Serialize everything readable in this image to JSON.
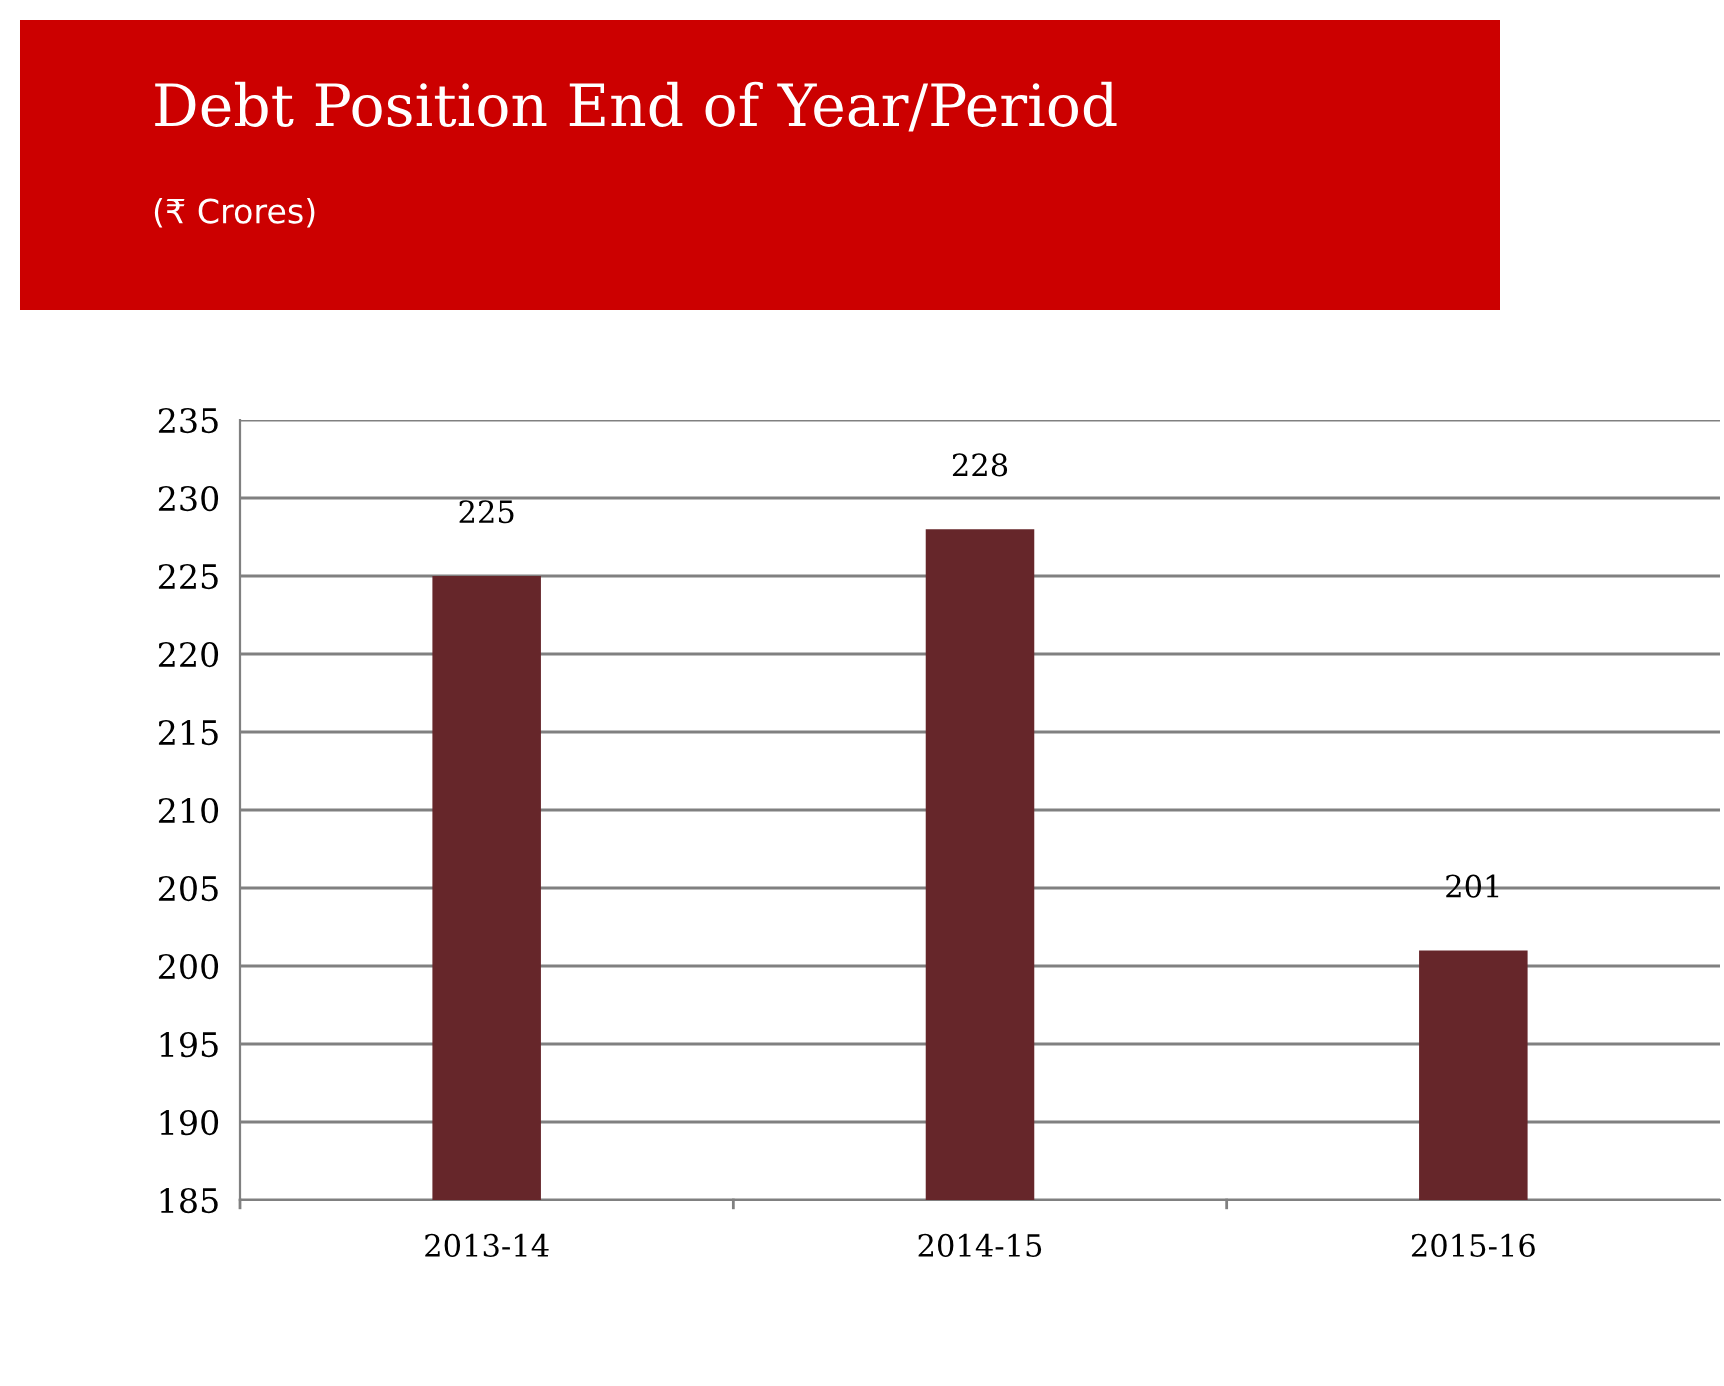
{
  "chart_data": {
    "type": "bar",
    "title": "Debt Position End of Year/Period",
    "subtitle": "(₹ Crores)",
    "categories": [
      "2013-14",
      "2014-15",
      "2015-16"
    ],
    "values": [
      225,
      228,
      201
    ],
    "color": "#66262a",
    "ylim": [
      185,
      235
    ],
    "yticks": [
      185,
      190,
      195,
      200,
      205,
      210,
      215,
      220,
      225,
      230,
      235
    ],
    "grid": "y",
    "data_labels": true
  }
}
